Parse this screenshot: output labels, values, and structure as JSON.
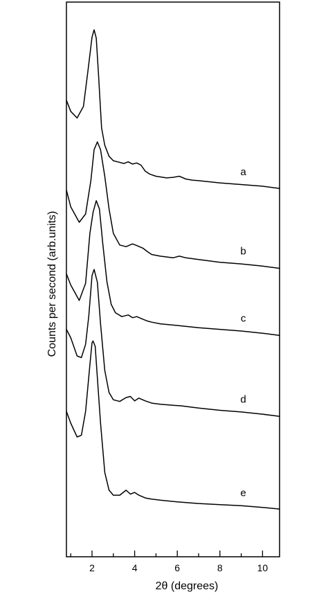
{
  "chart_data": {
    "type": "line",
    "title": "",
    "xlabel": "2θ (degrees)",
    "ylabel": "Counts per second (arb.units)",
    "xlim": [
      0.8,
      10.8
    ],
    "ylim": [
      0,
      100
    ],
    "xticks": [
      2,
      4,
      6,
      8,
      10
    ],
    "grid": false,
    "legend": "none",
    "series": [
      {
        "name": "a",
        "x": [
          0.8,
          1.0,
          1.3,
          1.6,
          1.8,
          2.0,
          2.1,
          2.2,
          2.3,
          2.45,
          2.6,
          2.8,
          3.0,
          3.2,
          3.5,
          3.7,
          3.9,
          4.1,
          4.3,
          4.5,
          4.7,
          5.0,
          5.5,
          5.8,
          6.1,
          6.4,
          6.7,
          7.0,
          8.0,
          9.0,
          10.0,
          10.8
        ],
        "y": [
          82.3,
          80.3,
          79.1,
          81.2,
          87.3,
          93.7,
          95.0,
          93.5,
          87.3,
          77.3,
          74.2,
          72.2,
          71.4,
          71.2,
          70.9,
          71.2,
          70.8,
          71.0,
          70.6,
          69.5,
          69.0,
          68.6,
          68.3,
          68.4,
          68.6,
          68.1,
          67.9,
          67.8,
          67.4,
          67.1,
          66.8,
          66.4
        ]
      },
      {
        "name": "b",
        "x": [
          0.8,
          1.0,
          1.4,
          1.7,
          1.95,
          2.1,
          2.25,
          2.4,
          2.6,
          2.8,
          3.0,
          3.3,
          3.6,
          3.9,
          4.1,
          4.4,
          4.6,
          4.8,
          5.2,
          5.8,
          6.1,
          6.4,
          7.0,
          8.0,
          9.0,
          10.0,
          10.8
        ],
        "y": [
          66.1,
          63.1,
          60.3,
          61.8,
          67.9,
          73.4,
          74.8,
          73.4,
          68.6,
          62.7,
          58.3,
          56.2,
          55.9,
          56.4,
          56.1,
          55.6,
          55.0,
          54.5,
          54.2,
          53.9,
          54.2,
          53.9,
          53.6,
          53.1,
          52.8,
          52.4,
          52.0
        ]
      },
      {
        "name": "c",
        "x": [
          0.8,
          1.0,
          1.4,
          1.7,
          1.9,
          2.05,
          2.2,
          2.35,
          2.5,
          2.7,
          2.9,
          3.1,
          3.4,
          3.7,
          3.9,
          4.1,
          4.4,
          4.6,
          4.8,
          5.2,
          6.0,
          7.0,
          8.0,
          9.0,
          10.0,
          10.8
        ],
        "y": [
          51.0,
          49.0,
          46.2,
          49.3,
          58.3,
          62.1,
          64.2,
          62.7,
          56.6,
          49.6,
          45.5,
          44.0,
          43.3,
          43.6,
          43.1,
          43.3,
          42.8,
          42.5,
          42.3,
          42.0,
          41.7,
          41.3,
          41.0,
          40.7,
          40.3,
          39.9
        ]
      },
      {
        "name": "d",
        "x": [
          0.8,
          1.0,
          1.3,
          1.5,
          1.7,
          1.85,
          2.0,
          2.1,
          2.25,
          2.4,
          2.6,
          2.8,
          3.0,
          3.3,
          3.6,
          3.8,
          4.0,
          4.2,
          4.5,
          4.8,
          5.2,
          5.8,
          6.2,
          7.0,
          8.0,
          9.0,
          10.0,
          10.8
        ],
        "y": [
          41.0,
          39.5,
          36.2,
          35.9,
          38.3,
          43.4,
          50.7,
          51.8,
          49.5,
          42.0,
          33.6,
          29.6,
          28.3,
          28.0,
          28.7,
          28.9,
          28.1,
          28.6,
          28.1,
          27.7,
          27.5,
          27.3,
          27.2,
          26.8,
          26.4,
          26.1,
          25.7,
          25.3
        ]
      },
      {
        "name": "e",
        "x": [
          0.8,
          1.0,
          1.3,
          1.5,
          1.7,
          1.9,
          2.0,
          2.05,
          2.15,
          2.25,
          2.4,
          2.6,
          2.8,
          3.0,
          3.3,
          3.6,
          3.8,
          4.0,
          4.2,
          4.5,
          4.8,
          5.2,
          6.0,
          7.0,
          8.0,
          9.0,
          10.0,
          10.8
        ],
        "y": [
          26.2,
          24.1,
          21.6,
          21.9,
          26.2,
          34.6,
          38.6,
          38.9,
          37.9,
          32.3,
          24.1,
          15.2,
          12.0,
          11.1,
          11.1,
          12.0,
          11.3,
          11.6,
          11.1,
          10.6,
          10.4,
          10.2,
          9.9,
          9.6,
          9.4,
          9.2,
          8.9,
          8.6
        ]
      }
    ]
  }
}
